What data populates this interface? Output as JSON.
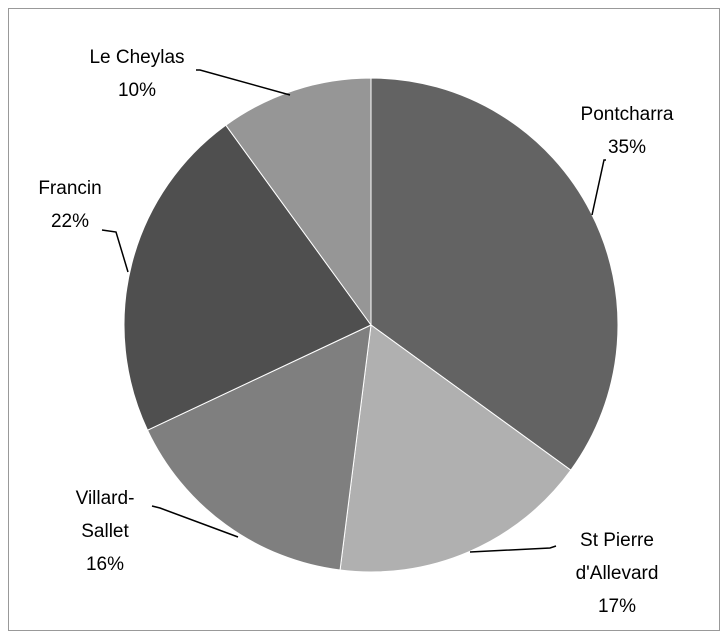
{
  "chart_data": {
    "type": "pie",
    "categories": [
      "Pontcharra",
      "St Pierre\nd'Allevard",
      "Villard-\nSallet",
      "Francin",
      "Le Cheylas"
    ],
    "values": [
      35,
      17,
      16,
      22,
      10
    ],
    "value_labels": [
      "35%",
      "17%",
      "16%",
      "22%",
      "10%"
    ],
    "colors": [
      "#636363",
      "#b0b0b0",
      "#7f7f7f",
      "#4f4f4f",
      "#969696"
    ]
  }
}
